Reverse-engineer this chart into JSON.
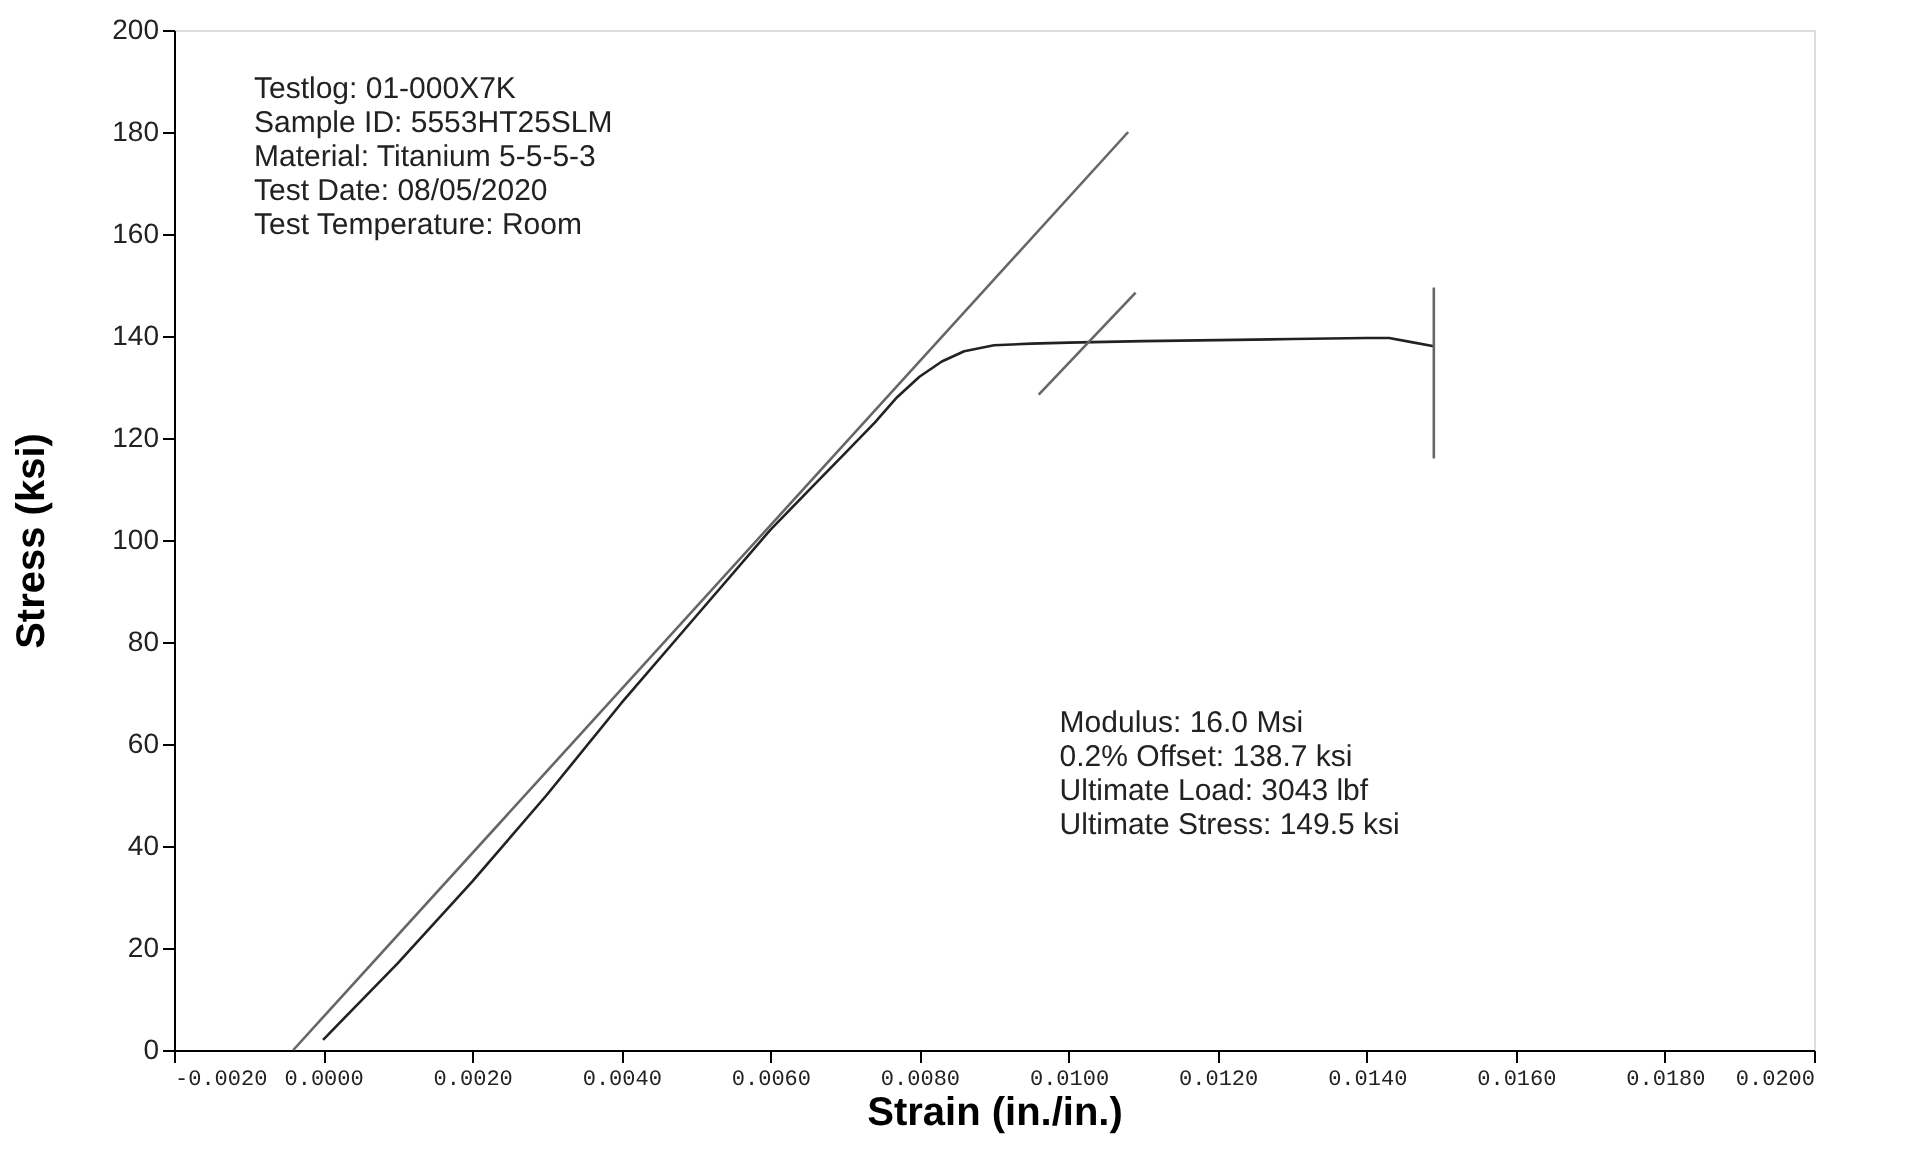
{
  "chart_data": {
    "type": "line",
    "xlabel": "Strain (in./in.)",
    "ylabel": "Stress (ksi)",
    "annotations": [
      "Testlog: 01-000X7K\nSample ID: 5553HT25SLM\nMaterial: Titanium 5-5-5-3\nTest Date: 08/05/2020\nTest Temperature: Room",
      "Modulus: 16.0 Msi\n0.2% Offset: 138.7 ksi\nUltimate Load: 3043 lbf\nUltimate Stress: 149.5 ksi"
    ],
    "series": [
      {
        "color": "#222222",
        "x": [
          0.0,
          0.001,
          0.002,
          0.003,
          0.004,
          0.005,
          0.006,
          0.0066,
          0.007,
          0.0074,
          0.0077,
          0.008,
          0.0083,
          0.0086,
          0.009,
          0.0095,
          0.01,
          0.011,
          0.012,
          0.013,
          0.014,
          0.0143,
          0.0146,
          0.0149
        ],
        "values": [
          2,
          17,
          33,
          50,
          68,
          85,
          102,
          111,
          117,
          123,
          128,
          132,
          135,
          137,
          138.2,
          138.5,
          138.7,
          139,
          139.2,
          139.4,
          139.6,
          139.6,
          138.8,
          138
        ]
      },
      {
        "color": "#666666",
        "x": [
          -0.0004,
          0.0108
        ],
        "values": [
          0,
          180
        ]
      },
      {
        "color": "#666666",
        "x": [
          0.0096,
          0.0109
        ],
        "values": [
          128.5,
          148.5
        ]
      },
      {
        "color": "#666666",
        "x": [
          0.0149,
          0.0149
        ],
        "values": [
          116,
          149.5
        ]
      }
    ],
    "xlim": [
      -0.002,
      0.02
    ],
    "xticks": [
      {
        "value": -0.002,
        "label": "-0.0020"
      },
      {
        "value": 0,
        "label": "0.0000"
      },
      {
        "value": 0.002,
        "label": "0.0020"
      },
      {
        "value": 0.004,
        "label": "0.0040"
      },
      {
        "value": 0.006,
        "label": "0.0060"
      },
      {
        "value": 0.008,
        "label": "0.0080"
      },
      {
        "value": 0.01,
        "label": "0.0100"
      },
      {
        "value": 0.012,
        "label": "0.0120"
      },
      {
        "value": 0.014,
        "label": "0.0140"
      },
      {
        "value": 0.016,
        "label": "0.0160"
      },
      {
        "value": 0.018,
        "label": "0.0180"
      },
      {
        "value": 0.02,
        "label": "0.0200"
      }
    ],
    "ylim": [
      0,
      200
    ],
    "yticks": [
      0,
      20,
      40,
      60,
      80,
      100,
      120,
      140,
      160,
      180,
      200
    ],
    "grid": false,
    "legend": false,
    "marker": "none",
    "line_style": "solid"
  }
}
